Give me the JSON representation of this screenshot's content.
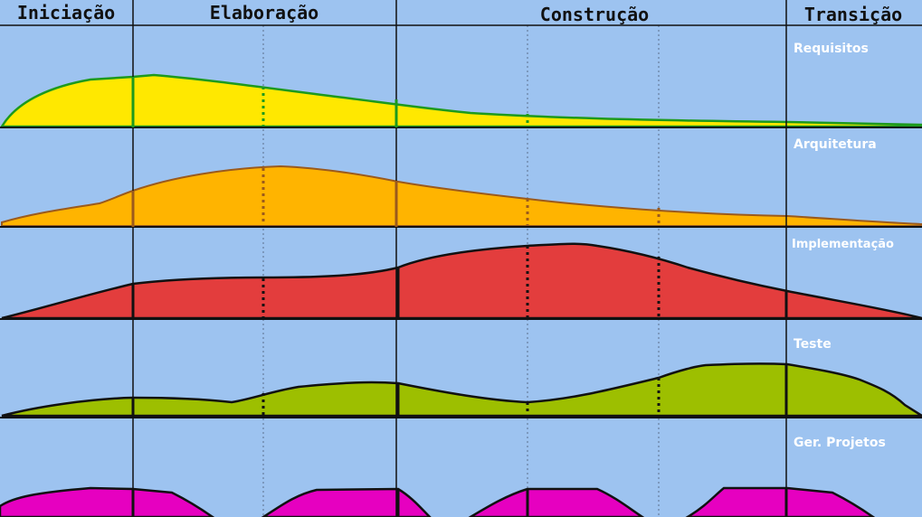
{
  "phases": [
    {
      "label": "Iniciação"
    },
    {
      "label": "Elaboração"
    },
    {
      "label": "Construção"
    },
    {
      "label": "Transição"
    }
  ],
  "disciplines": [
    {
      "label": "Requisitos",
      "fill": "#ffe800",
      "stroke": "#1d9a1d"
    },
    {
      "label": "Arquitetura",
      "fill": "#ffb400",
      "stroke": "#9b5a1c"
    },
    {
      "label": "Implementação",
      "fill": "#e33d3d",
      "stroke": "#111111"
    },
    {
      "label": "Teste",
      "fill": "#9dbf00",
      "stroke": "#111111"
    },
    {
      "label": "Ger. Projetos",
      "fill": "#e600c0",
      "stroke": "#111111"
    }
  ],
  "colors": {
    "background": "#9dc3f0",
    "grid_line": "#111111",
    "dotted_line": "#5a6f8c"
  }
}
